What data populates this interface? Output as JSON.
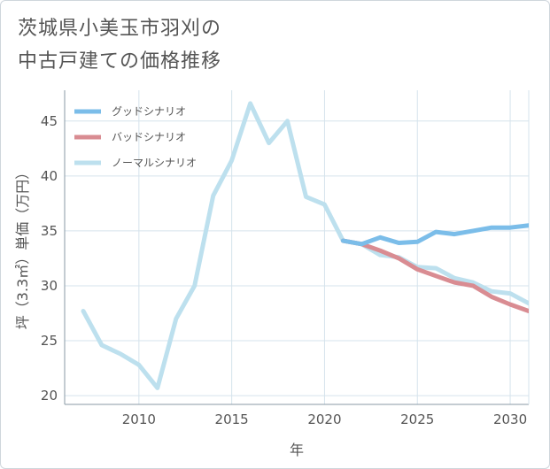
{
  "title_lines": [
    "茨城県小美玉市羽刈の",
    "中古戸建ての価格推移"
  ],
  "chart_data": {
    "type": "line",
    "title": "茨城県小美玉市羽刈の中古戸建ての価格推移",
    "xlabel": "年",
    "ylabel": "坪（3.3㎡）単価（万円）",
    "xlim": [
      2006,
      2031
    ],
    "ylim": [
      19.2,
      47.8
    ],
    "xticks": [
      2010,
      2015,
      2020,
      2025,
      2030
    ],
    "yticks": [
      20,
      25,
      30,
      35,
      40,
      45
    ],
    "grid": true,
    "legend_position": "top-left",
    "series": [
      {
        "name": "グッドシナリオ",
        "color": "#7bbde9",
        "x": [
          2021,
          2022,
          2023,
          2024,
          2025,
          2026,
          2027,
          2028,
          2029,
          2030,
          2031
        ],
        "values": [
          34.1,
          33.8,
          34.4,
          33.9,
          34.0,
          34.9,
          34.7,
          35.0,
          35.3,
          35.3,
          35.5
        ]
      },
      {
        "name": "バッドシナリオ",
        "color": "#d98c92",
        "x": [
          2021,
          2022,
          2023,
          2024,
          2025,
          2026,
          2027,
          2028,
          2029,
          2030,
          2031
        ],
        "values": [
          34.1,
          33.8,
          33.2,
          32.5,
          31.5,
          30.9,
          30.3,
          30.0,
          29.0,
          28.3,
          27.7
        ]
      },
      {
        "name": "ノーマルシナリオ",
        "color": "#bde0ee",
        "x": [
          2007,
          2008,
          2009,
          2010,
          2011,
          2012,
          2013,
          2014,
          2015,
          2016,
          2017,
          2018,
          2019,
          2020,
          2021,
          2022,
          2023,
          2024,
          2025,
          2026,
          2027,
          2028,
          2029,
          2030,
          2031
        ],
        "values": [
          27.7,
          24.6,
          23.8,
          22.8,
          20.7,
          27.0,
          30.0,
          38.2,
          41.4,
          46.6,
          43.0,
          45.0,
          38.1,
          37.4,
          34.1,
          33.8,
          32.8,
          32.6,
          31.7,
          31.6,
          30.7,
          30.3,
          29.5,
          29.3,
          28.4
        ]
      }
    ]
  }
}
